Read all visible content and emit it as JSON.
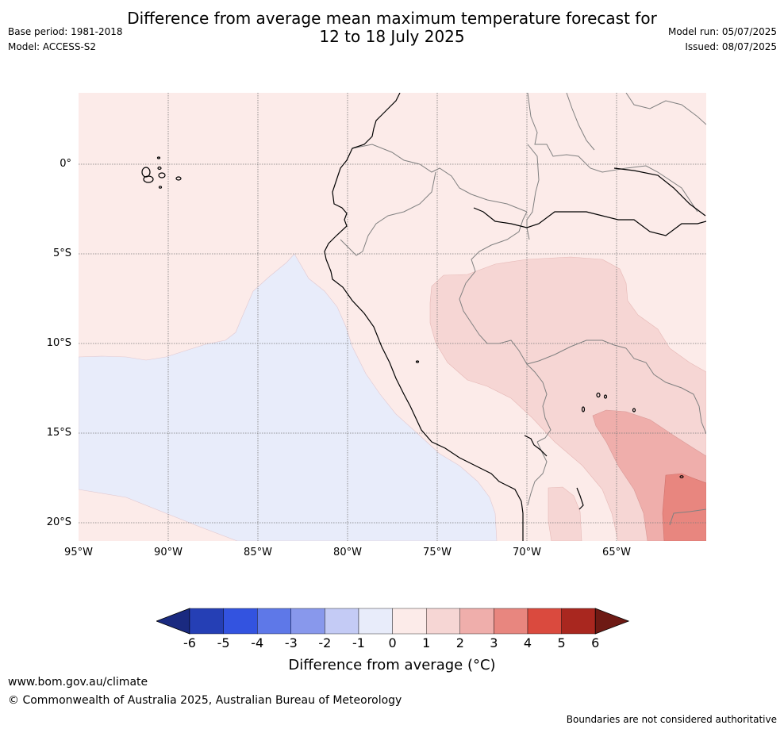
{
  "header": {
    "title_line1": "Difference from average mean maximum temperature forecast for",
    "title_line2": "12 to 18 July 2025",
    "base_period": "Base period: 1981-2018",
    "model": "Model: ACCESS-S2",
    "model_run": "Model run: 05/07/2025",
    "issued": "Issued: 08/07/2025"
  },
  "map": {
    "lat_labels": [
      "0°",
      "5°S",
      "10°S",
      "15°S",
      "20°S"
    ],
    "lon_labels": [
      "95°W",
      "90°W",
      "85°W",
      "80°W",
      "75°W",
      "70°W",
      "65°W"
    ],
    "ocean_anomaly_color": "#e8ecfa",
    "background_anomaly_color": "#fcebe9",
    "anomaly_1_2_color": "#f6d6d4",
    "anomaly_2_3_color": "#efaeab",
    "anomaly_3_4_color": "#e8867f"
  },
  "colorbar": {
    "tick_labels": [
      "-6",
      "-5",
      "-4",
      "-3",
      "-2",
      "-1",
      "0",
      "1",
      "2",
      "3",
      "4",
      "5",
      "6"
    ],
    "colors": [
      "#1a2a80",
      "#253fb5",
      "#3353e0",
      "#5e78e8",
      "#8898ec",
      "#c4cbf5",
      "#e8ecfa",
      "#fcebe9",
      "#f6d6d4",
      "#efaeab",
      "#e8867f",
      "#da4a3e",
      "#a9271f",
      "#6e1a14"
    ],
    "title": "Difference from average (°C)"
  },
  "footer": {
    "url": "www.bom.gov.au/climate",
    "copyright": "© Commonwealth of Australia 2025, Australian Bureau of Meteorology",
    "disclaimer": "Boundaries are not considered authoritative"
  }
}
